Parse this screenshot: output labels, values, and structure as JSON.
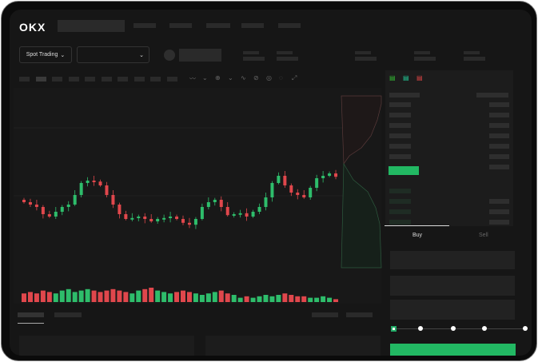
{
  "header": {
    "logo": "OKX"
  },
  "toolbar": {
    "market_select": "Spot Trading",
    "pair_select": ""
  },
  "order_form": {
    "tabs": [
      "Buy",
      "Sell"
    ],
    "active_tab": "Buy",
    "slider_percent": 0,
    "submit_color": "#22b863"
  },
  "colors": {
    "up": "#2ebd6b",
    "down": "#e0474c",
    "background": "#161616"
  },
  "icons": [
    "chevron-down-icon",
    "orderbook-both-icon",
    "orderbook-bids-icon",
    "orderbook-asks-icon"
  ],
  "chart_data": {
    "type": "candlestick",
    "closes": [
      95,
      90,
      85,
      70,
      65,
      75,
      85,
      90,
      110,
      135,
      140,
      138,
      130,
      110,
      90,
      70,
      60,
      62,
      65,
      60,
      55,
      60,
      62,
      65,
      60,
      52,
      48,
      60,
      85,
      95,
      100,
      85,
      68,
      70,
      72,
      65,
      75,
      85,
      105,
      135,
      150,
      130,
      115,
      110,
      105,
      125,
      145,
      150,
      155,
      148
    ],
    "volumes": [
      6,
      7,
      6,
      8,
      7,
      6,
      8,
      9,
      7,
      8,
      9,
      8,
      7,
      8,
      9,
      8,
      7,
      6,
      8,
      9,
      10,
      8,
      7,
      6,
      7,
      8,
      7,
      6,
      5,
      6,
      7,
      8,
      6,
      5,
      3,
      4,
      3,
      4,
      5,
      4,
      5,
      6,
      5,
      4,
      4,
      3,
      3,
      4,
      3,
      2
    ]
  }
}
